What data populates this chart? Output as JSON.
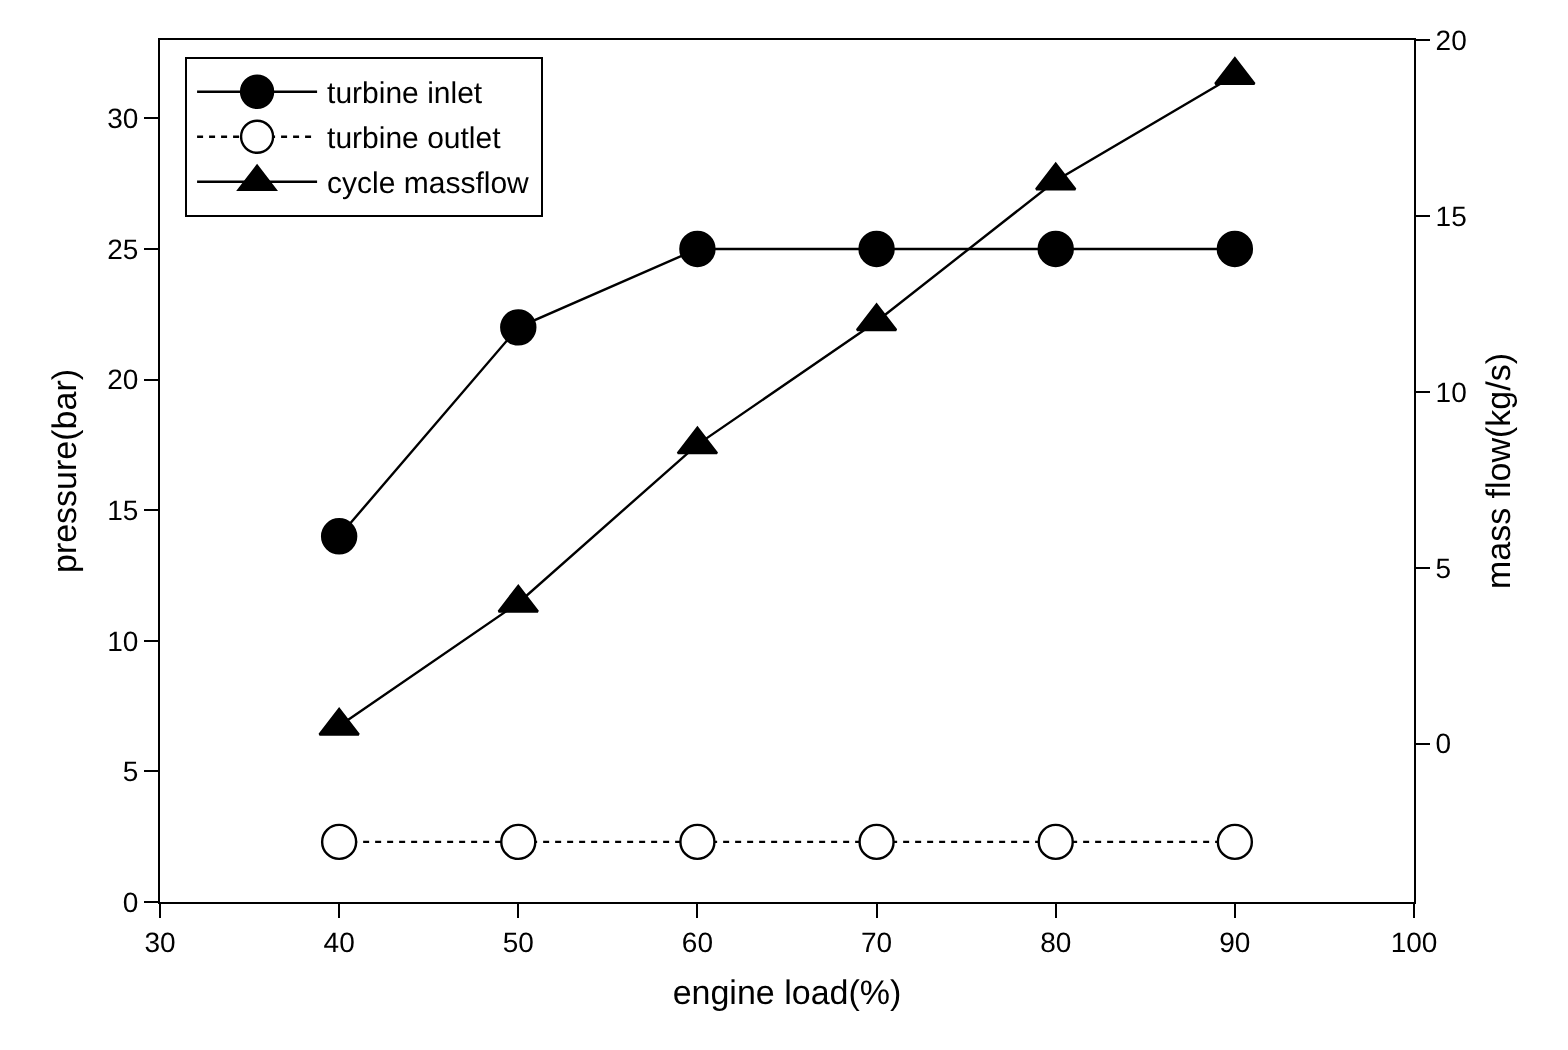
{
  "chart_data": {
    "type": "line",
    "xlabel": "engine load(%)",
    "ylabel": "pressure(bar)",
    "y2label": "mass flow(kg/s)",
    "x": [
      40,
      50,
      60,
      70,
      80,
      90
    ],
    "series": [
      {
        "name": "turbine inlet",
        "color": "#000000",
        "marker": "circle",
        "line_style": "solid",
        "values": [
          14,
          22,
          25,
          25,
          25,
          25
        ]
      },
      {
        "name": "turbine outlet",
        "color": "#ffffff",
        "marker": "circle",
        "line_style": "dotted",
        "values": [
          2.3,
          2.3,
          2.3,
          2.3,
          2.3,
          2.3
        ]
      },
      {
        "name": "cycle massflow",
        "color": "#000000",
        "marker": "triangle",
        "line_style": "solid",
        "axis": "y2",
        "values": [
          0.5,
          4,
          8.5,
          12,
          16,
          19
        ]
      }
    ],
    "xlim": [
      30,
      100
    ],
    "xticks": [
      30,
      40,
      50,
      60,
      70,
      80,
      90,
      100
    ],
    "ylim": [
      0,
      33
    ],
    "yticks": [
      0,
      5,
      10,
      15,
      20,
      25,
      30
    ],
    "y2lim": [
      -4.5,
      20
    ],
    "y2ticks": [
      0,
      5,
      10,
      15,
      20
    ],
    "grid": false,
    "legend": "top left"
  }
}
